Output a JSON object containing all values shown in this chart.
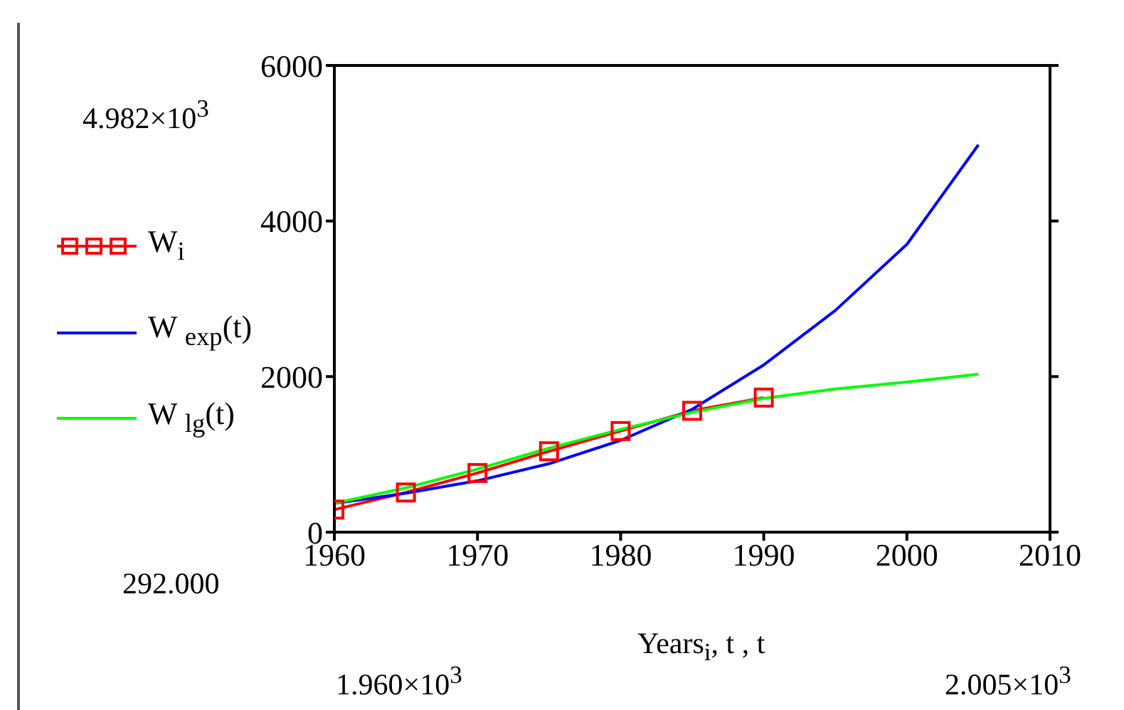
{
  "chart_data": {
    "type": "line",
    "xlabel": "Years$_{i}$, t , t",
    "xlim": [
      1960,
      2010
    ],
    "xticks": [
      1960,
      1970,
      1980,
      1990,
      2000,
      2010
    ],
    "ylim": [
      0,
      6000
    ],
    "yticks": [
      0,
      2000,
      4000,
      6000
    ],
    "grid": false,
    "legend": "left",
    "series": [
      {
        "name": "W$_{i}$",
        "color": "#ff0000",
        "marker": "square",
        "x": [
          1960,
          1965,
          1970,
          1975,
          1980,
          1985,
          1990
        ],
        "values": [
          290,
          510,
          760,
          1040,
          1300,
          1560,
          1730
        ]
      },
      {
        "name": "W $_{exp}$(t)",
        "color": "#0000ff",
        "marker": "none",
        "x": [
          1960,
          1965,
          1970,
          1975,
          1980,
          1985,
          1990,
          1995,
          2000,
          2005
        ],
        "values": [
          370,
          500,
          660,
          880,
          1180,
          1580,
          2150,
          2850,
          3700,
          4980
        ]
      },
      {
        "name": "W $_{lg}$(t)",
        "color": "#00ff00",
        "marker": "none",
        "x": [
          1960,
          1965,
          1970,
          1975,
          1980,
          1985,
          1990,
          1995,
          2000,
          2005
        ],
        "values": [
          370,
          570,
          810,
          1080,
          1320,
          1540,
          1720,
          1840,
          1930,
          2030
        ]
      }
    ],
    "annotations": [
      "4.982×10$^{3}$",
      "292.000",
      "1.960×10$^{3}$",
      "2.005×10$^{3}$"
    ]
  }
}
